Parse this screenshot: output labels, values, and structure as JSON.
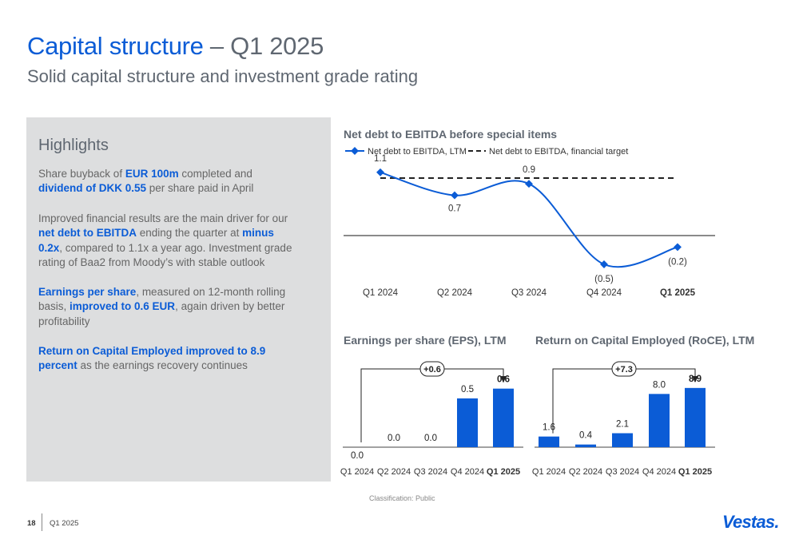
{
  "header": {
    "title_main": "Capital structure",
    "title_rest": " – Q1 2025",
    "subtitle": "Solid capital structure and investment grade rating"
  },
  "highlights": {
    "heading": "Highlights",
    "paragraphs": [
      [
        {
          "t": "Share buyback of ",
          "b": false
        },
        {
          "t": "EUR 100m",
          "b": true
        },
        {
          "t": " completed and ",
          "b": false
        },
        {
          "t": "dividend of DKK 0.55",
          "b": true
        },
        {
          "t": " per share paid in April",
          "b": false
        }
      ],
      [
        {
          "t": "Improved financial results are the main driver for our ",
          "b": false
        },
        {
          "t": "net debt to EBITDA",
          "b": true
        },
        {
          "t": " ending the quarter at ",
          "b": false
        },
        {
          "t": "minus 0.2x",
          "b": true
        },
        {
          "t": ", compared to 1.1x a year ago. Investment grade rating of Baa2 from Moody’s with stable outlook",
          "b": false
        }
      ],
      [
        {
          "t": "Earnings per share",
          "b": true
        },
        {
          "t": ", measured on 12-month rolling basis, ",
          "b": false
        },
        {
          "t": "improved to 0.6 EUR",
          "b": true
        },
        {
          "t": ", again driven by better profitability",
          "b": false
        }
      ],
      [
        {
          "t": "Return on Capital Employed improved to 8.9 percent",
          "b": true
        },
        {
          "t": " as the earnings recovery continues",
          "b": false
        }
      ]
    ]
  },
  "colors": {
    "accent": "#0b5cd6",
    "text_gray": "#5f6771",
    "panel": "#dddedf"
  },
  "chart_data": [
    {
      "type": "line",
      "title": "Net debt to EBITDA before special items",
      "categories": [
        "Q1 2024",
        "Q2 2024",
        "Q3 2024",
        "Q4 2024",
        "Q1 2025"
      ],
      "bold_category": "Q1 2025",
      "series": [
        {
          "name": "Net debt to EBITDA, LTM",
          "values": [
            1.1,
            0.7,
            0.9,
            -0.5,
            -0.2
          ],
          "labels": [
            "1.1",
            "0.7",
            "0.9",
            "(0.5)",
            "(0.2)"
          ]
        },
        {
          "name": "Net debt to EBITDA, financial target",
          "style": "dashed",
          "values": [
            1.0,
            1.0,
            1.0,
            1.0,
            1.0
          ]
        }
      ],
      "legend": "top-left",
      "ylim": [
        -0.8,
        1.3
      ],
      "grid": false
    },
    {
      "type": "bar",
      "title": "Earnings per share (EPS), LTM",
      "categories": [
        "Q1 2024",
        "Q2 2024",
        "Q3 2024",
        "Q4 2024",
        "Q1 2025"
      ],
      "bold_category": "Q1 2025",
      "values": [
        0.0,
        0.0,
        0.0,
        0.5,
        0.6
      ],
      "labels": [
        "0.0",
        "0.0",
        "0.0",
        "0.5",
        "0.6"
      ],
      "bold_label_index": 4,
      "change_annotation": "+0.6",
      "ylim": [
        0,
        0.9
      ]
    },
    {
      "type": "bar",
      "title": "Return on Capital Employed (RoCE), LTM",
      "categories": [
        "Q1 2024",
        "Q2 2024",
        "Q3 2024",
        "Q4 2024",
        "Q1 2025"
      ],
      "bold_category": "Q1 2025",
      "values": [
        1.6,
        0.4,
        2.1,
        8.0,
        8.9
      ],
      "labels": [
        "1.6",
        "0.4",
        "2.1",
        "8.0",
        "8.9"
      ],
      "bold_label_index": 4,
      "change_annotation": "+7.3",
      "ylim": [
        0,
        13.2
      ]
    }
  ],
  "footer": {
    "page_number": "18",
    "period": "Q1 2025",
    "classification": "Classification: Public",
    "logo_text": "Vestas."
  }
}
